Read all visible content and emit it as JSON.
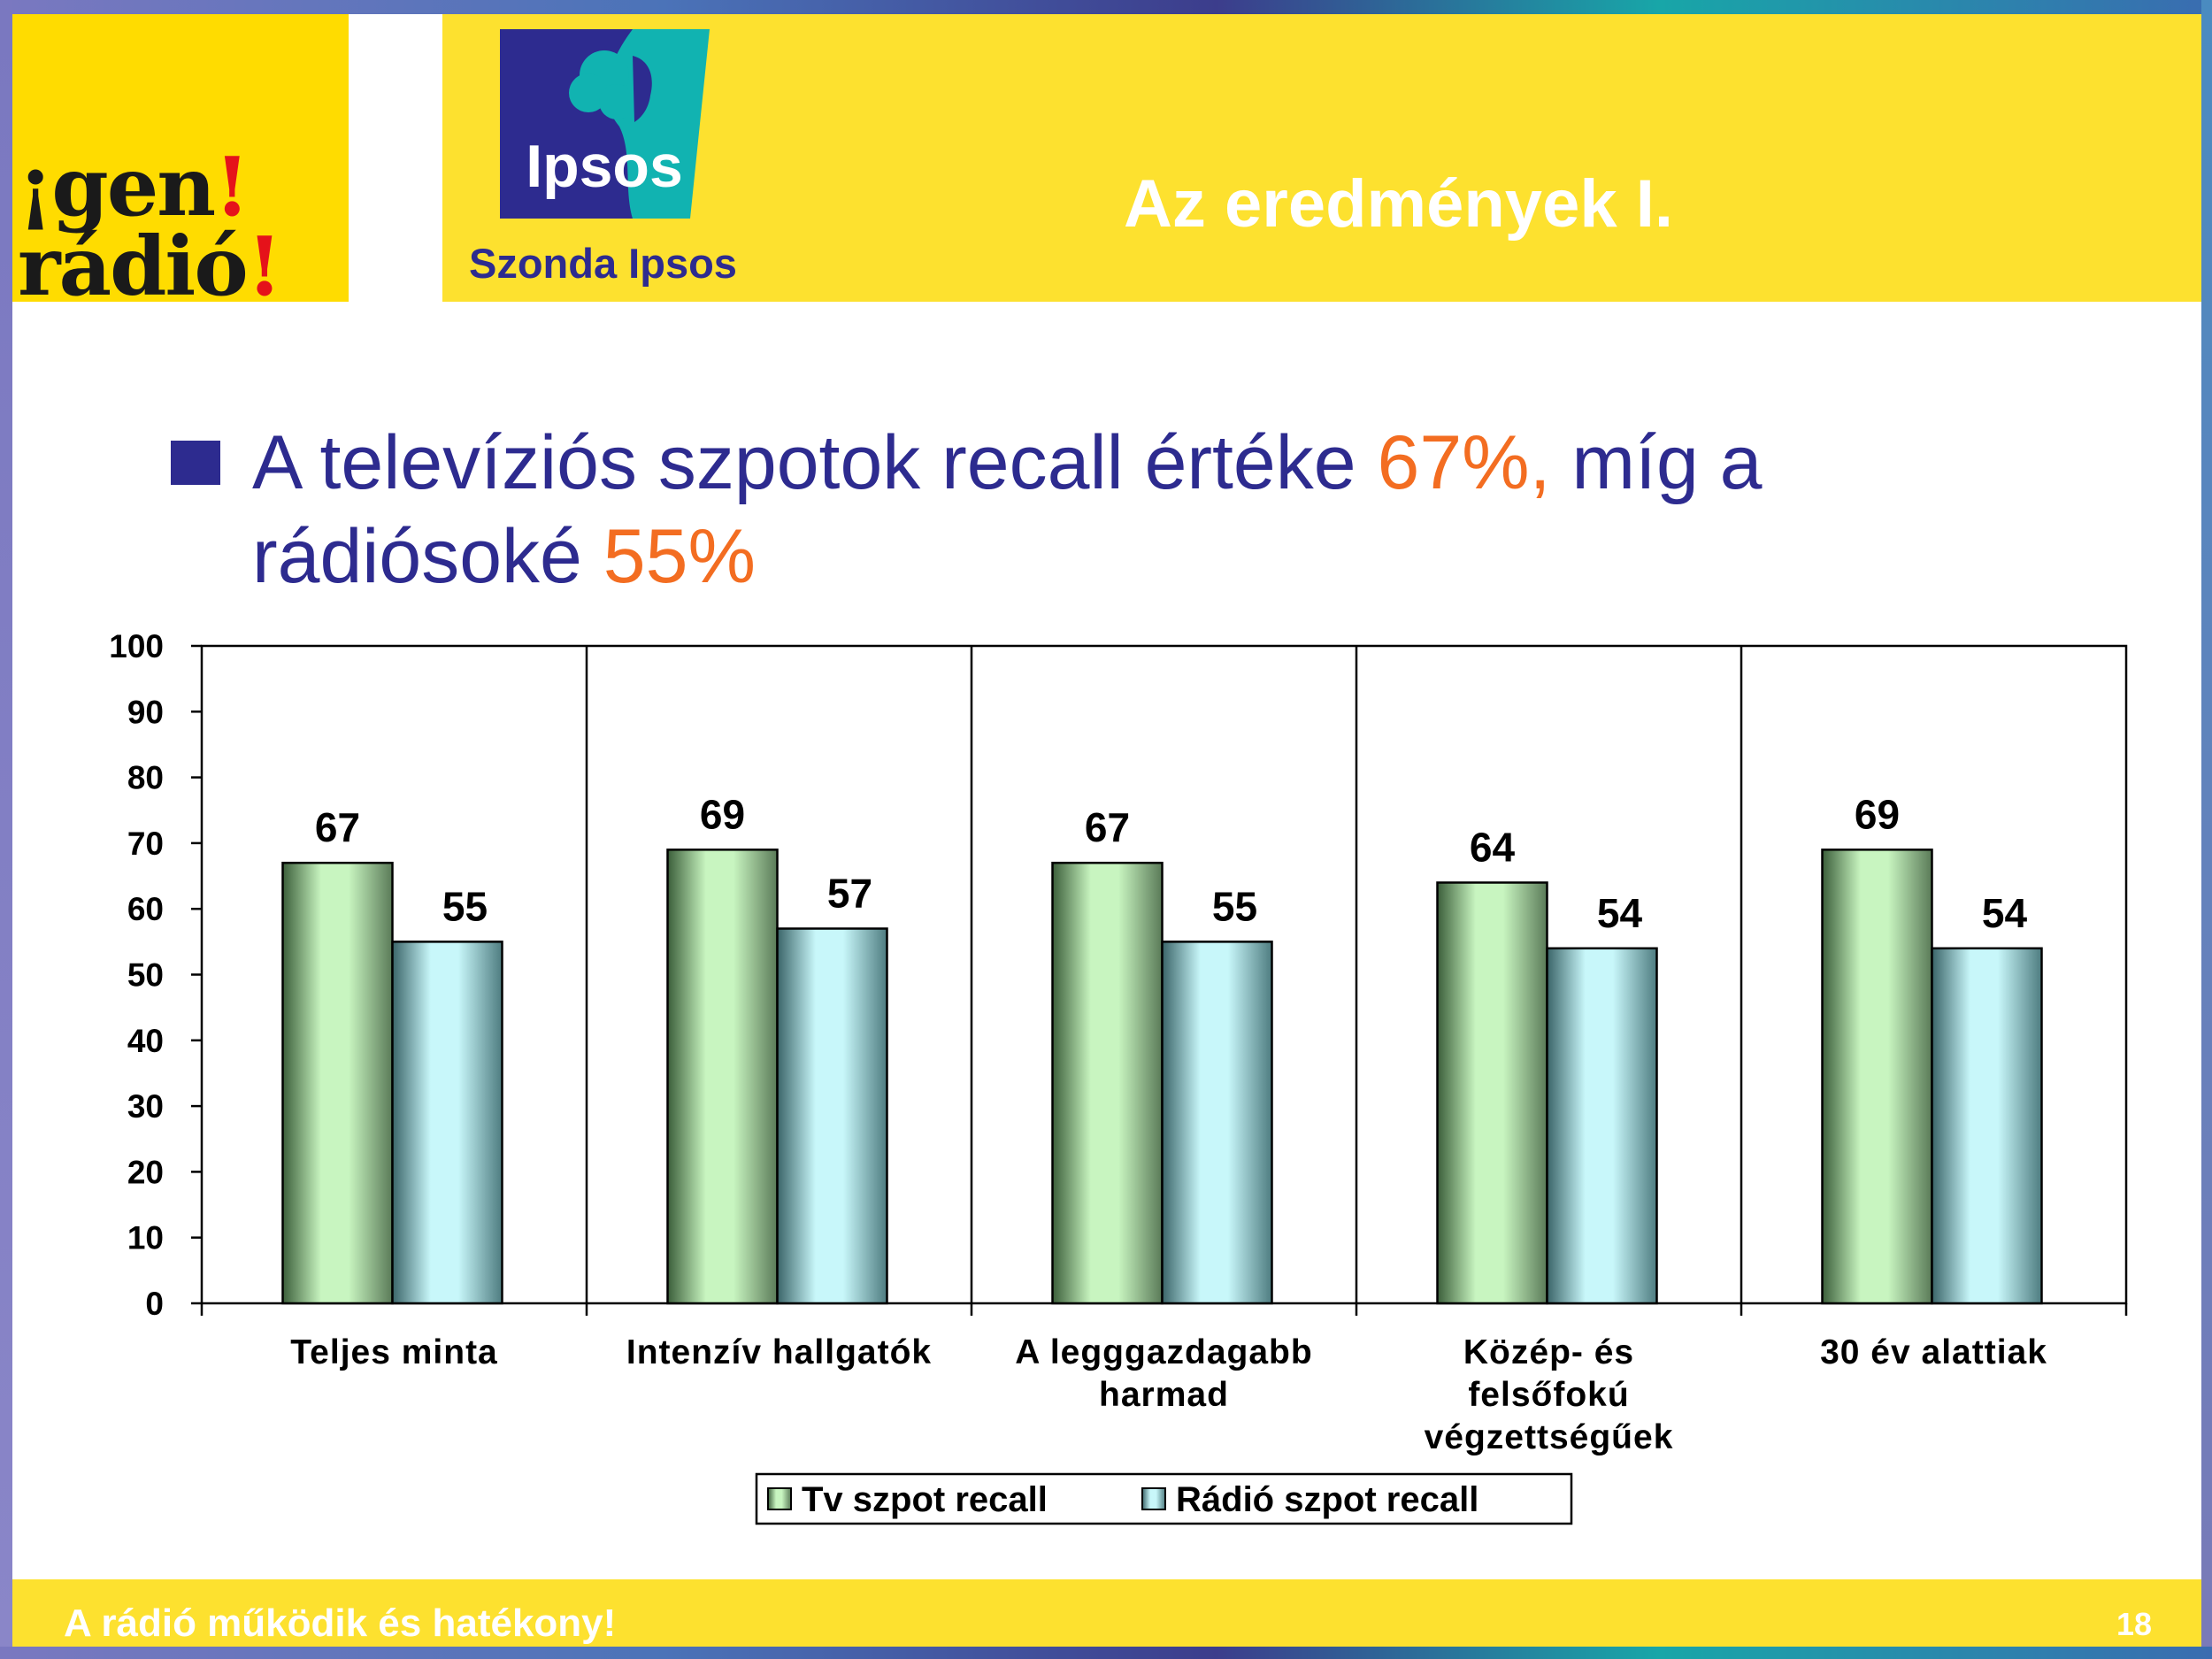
{
  "branding": {
    "logo_igen_line1": "¡gen",
    "logo_igen_line2": "rádió",
    "logo_mark": "!",
    "ipsos_logo_text": "Ipsos",
    "company": "Szonda Ipsos"
  },
  "slide": {
    "title": "Az eredmények I.",
    "headline_part1": "A televíziós szpotok recall értéke ",
    "headline_highlight1": "67%,",
    "headline_part2": " míg a rádiósoké ",
    "headline_highlight2": "55%",
    "footer": "A rádió működik és hatékony!",
    "page_number": "18"
  },
  "colors": {
    "brand_blue": "#2d2b8f",
    "highlight_orange": "#f36d21",
    "header_yellow": "#fde12f",
    "tv_series": "#c8f5c0",
    "radio_series": "#c8f7fa"
  },
  "chart_data": {
    "type": "bar",
    "categories": [
      [
        "Teljes minta"
      ],
      [
        "Intenzív hallgatók"
      ],
      [
        "A legggazdagabb",
        "harmad"
      ],
      [
        "Közép- és",
        "felsőfokú",
        "végzettségűek"
      ],
      [
        "30 év alattiak"
      ]
    ],
    "series": [
      {
        "name": "Tv szpot recall",
        "values": [
          67,
          69,
          67,
          64,
          69
        ]
      },
      {
        "name": "Rádió szpot recall",
        "values": [
          55,
          57,
          55,
          54,
          54
        ]
      }
    ],
    "ylim": [
      0,
      100
    ],
    "yticks": [
      0,
      10,
      20,
      30,
      40,
      50,
      60,
      70,
      80,
      90,
      100
    ],
    "data_labels": true,
    "legend_position": "bottom",
    "vertical_category_separators": true
  }
}
